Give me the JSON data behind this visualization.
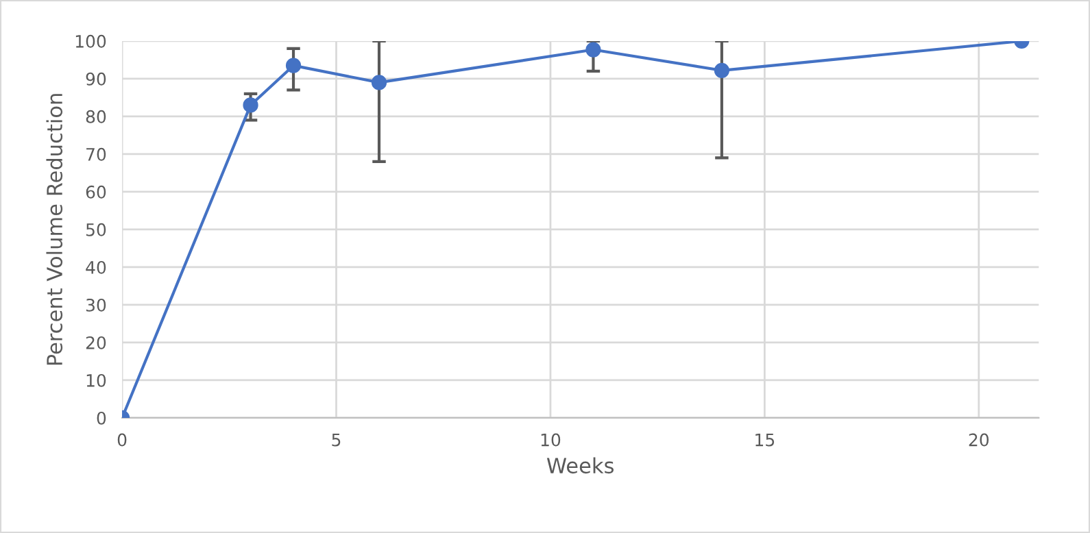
{
  "chart_data": {
    "type": "line",
    "xlabel": "Weeks",
    "ylabel": "Percent Volume Reduction",
    "x": [
      0,
      3,
      4,
      6,
      11,
      14,
      21
    ],
    "series": [
      {
        "color": "#4472c4",
        "values": [
          0,
          83,
          93.5,
          89,
          97.7,
          92.2,
          100
        ],
        "errors": [
          null,
          [
            79,
            86
          ],
          [
            87,
            98
          ],
          [
            68,
            100
          ],
          [
            92,
            100
          ],
          [
            69,
            100
          ],
          null
        ]
      }
    ],
    "xlim": [
      0,
      21.4
    ],
    "xticks": [
      0,
      5,
      10,
      15,
      20
    ],
    "ylim": [
      0,
      100
    ],
    "yticks": [
      0,
      10,
      20,
      30,
      40,
      50,
      60,
      70,
      80,
      90,
      100
    ],
    "grid": true,
    "marker": "circle",
    "line_style": "solid",
    "legend": false
  }
}
